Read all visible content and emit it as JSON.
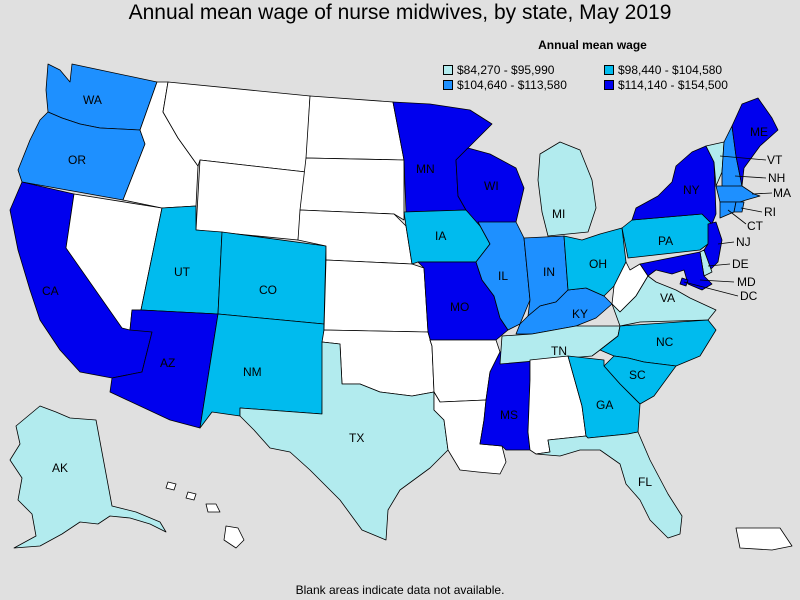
{
  "title": "Annual mean wage of nurse midwives, by state, May 2019",
  "footnote": "Blank areas indicate data not available.",
  "legend": {
    "title": "Annual mean wage",
    "items": [
      {
        "label": "$84,270 - $95,990",
        "color": "#b2ebee"
      },
      {
        "label": "$98,440 - $104,580",
        "color": "#00bbee"
      },
      {
        "label": "$104,640 - $113,580",
        "color": "#1e90ff"
      },
      {
        "label": "$114,140 - $154,500",
        "color": "#0000ee"
      }
    ]
  },
  "colors": {
    "background": "#e0e0e0",
    "no_data": "#ffffff",
    "tier1": "#b2ebee",
    "tier2": "#00bbee",
    "tier3": "#1e90ff",
    "tier4": "#0000ee"
  },
  "states": {
    "WA": {
      "label": "WA",
      "tier": 3
    },
    "OR": {
      "label": "OR",
      "tier": 3
    },
    "CA": {
      "label": "CA",
      "tier": 4
    },
    "NV": {
      "label": "",
      "tier": 0
    },
    "ID": {
      "label": "",
      "tier": 0
    },
    "MT": {
      "label": "",
      "tier": 0
    },
    "WY": {
      "label": "",
      "tier": 0
    },
    "UT": {
      "label": "UT",
      "tier": 2
    },
    "AZ": {
      "label": "AZ",
      "tier": 4
    },
    "CO": {
      "label": "CO",
      "tier": 2
    },
    "NM": {
      "label": "NM",
      "tier": 2
    },
    "ND": {
      "label": "",
      "tier": 0
    },
    "SD": {
      "label": "",
      "tier": 0
    },
    "NE": {
      "label": "",
      "tier": 0
    },
    "KS": {
      "label": "",
      "tier": 0
    },
    "OK": {
      "label": "",
      "tier": 0
    },
    "TX": {
      "label": "TX",
      "tier": 1
    },
    "MN": {
      "label": "MN",
      "tier": 4
    },
    "IA": {
      "label": "IA",
      "tier": 2
    },
    "MO": {
      "label": "MO",
      "tier": 4
    },
    "AR": {
      "label": "",
      "tier": 0
    },
    "LA": {
      "label": "",
      "tier": 0
    },
    "WI": {
      "label": "WI",
      "tier": 4
    },
    "IL": {
      "label": "IL",
      "tier": 3
    },
    "MS": {
      "label": "MS",
      "tier": 4
    },
    "MI": {
      "label": "MI",
      "tier": 1
    },
    "IN": {
      "label": "IN",
      "tier": 3
    },
    "KY": {
      "label": "KY",
      "tier": 3
    },
    "TN": {
      "label": "TN",
      "tier": 1
    },
    "AL": {
      "label": "",
      "tier": 0
    },
    "OH": {
      "label": "OH",
      "tier": 2
    },
    "GA": {
      "label": "GA",
      "tier": 2
    },
    "FL": {
      "label": "FL",
      "tier": 1
    },
    "SC": {
      "label": "SC",
      "tier": 2
    },
    "NC": {
      "label": "NC",
      "tier": 2
    },
    "VA": {
      "label": "VA",
      "tier": 1
    },
    "WV": {
      "label": "",
      "tier": 0
    },
    "PA": {
      "label": "PA",
      "tier": 2
    },
    "NY": {
      "label": "NY",
      "tier": 4
    },
    "VT": {
      "label": "VT",
      "tier": 1
    },
    "NH": {
      "label": "NH",
      "tier": 3
    },
    "ME": {
      "label": "ME",
      "tier": 4
    },
    "MA": {
      "label": "MA",
      "tier": 3
    },
    "RI": {
      "label": "RI",
      "tier": 3
    },
    "CT": {
      "label": "CT",
      "tier": 3
    },
    "NJ": {
      "label": "NJ",
      "tier": 4
    },
    "DE": {
      "label": "DE",
      "tier": 1
    },
    "MD": {
      "label": "MD",
      "tier": 4
    },
    "DC": {
      "label": "DC",
      "tier": 4
    },
    "AK": {
      "label": "AK",
      "tier": 1
    },
    "HI": {
      "label": "",
      "tier": 0
    },
    "PR": {
      "label": "",
      "tier": 0
    }
  }
}
